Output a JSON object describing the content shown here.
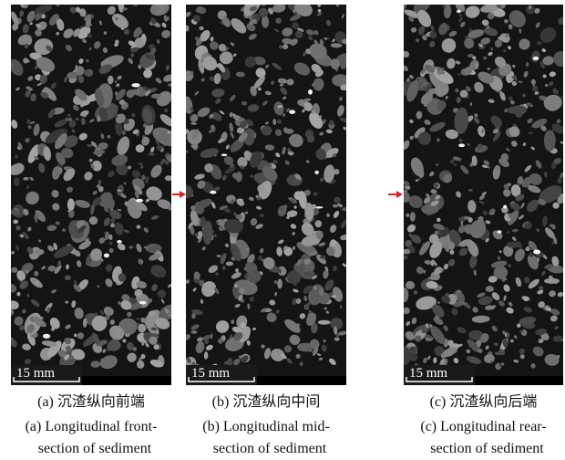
{
  "panels": [
    {
      "scale_bar": "15 mm",
      "caption_cn": "(a)  沉渣纵向前端",
      "caption_en": [
        "(a) Longitudinal front-",
        "section of sediment"
      ]
    },
    {
      "scale_bar": "15 mm",
      "caption_cn": "(b)  沉渣纵向中间",
      "caption_en": [
        "(b) Longitudinal mid-",
        "section of sediment"
      ]
    },
    {
      "scale_bar": "15 mm",
      "caption_cn": "(c)  沉渣纵向后端",
      "caption_en": [
        "(c) Longitudinal rear-",
        "section of sediment"
      ]
    }
  ]
}
